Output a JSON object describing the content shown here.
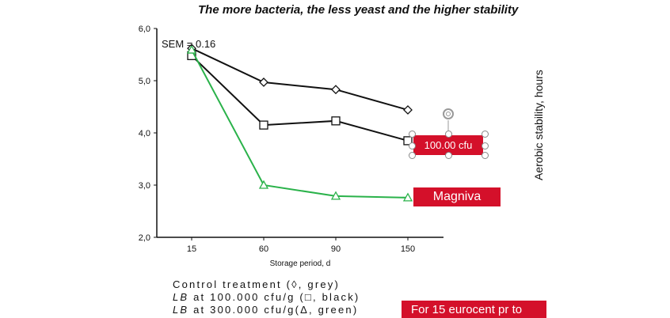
{
  "header": {
    "title": "The more bacteria, the less yeast and the higher stability"
  },
  "right_axis_label": "Aerobic stability, hours",
  "legend": {
    "line1": "Control treatment (◊, grey)",
    "line2_italic": "LB",
    "line2": " at 100.000 cfu/g (□, black)",
    "line3_italic": "LB",
    "line3": " at 300.000 cfu/g(Δ, green)"
  },
  "tags": {
    "selected": "100.00 cfu",
    "magniva": "Magniva",
    "price": "For 15 eurocent pr to"
  },
  "colors": {
    "accent": "#d4102a",
    "green": "#2ab24a",
    "line": "#111111"
  },
  "chart_data": {
    "type": "line",
    "title": "The more bacteria, the less yeast and the higher stability",
    "xlabel": "Storage period, d",
    "ylabel": "",
    "categories": [
      "15",
      "60",
      "90",
      "150"
    ],
    "ylim": [
      2.0,
      6.0
    ],
    "yticks": [
      "2,0",
      "3,0",
      "4,0",
      "5,0",
      "6,0"
    ],
    "annotation": "SEM = 0.16",
    "grid": false,
    "series": [
      {
        "marker": "diamond",
        "color": "#111111",
        "values": [
          5.62,
          4.97,
          4.83,
          4.44
        ]
      },
      {
        "marker": "square",
        "color": "#111111",
        "values": [
          5.48,
          4.15,
          4.23,
          3.85
        ]
      },
      {
        "marker": "triangle",
        "color": "#2ab24a",
        "values": [
          5.59,
          3.0,
          2.79,
          2.76
        ]
      }
    ]
  }
}
